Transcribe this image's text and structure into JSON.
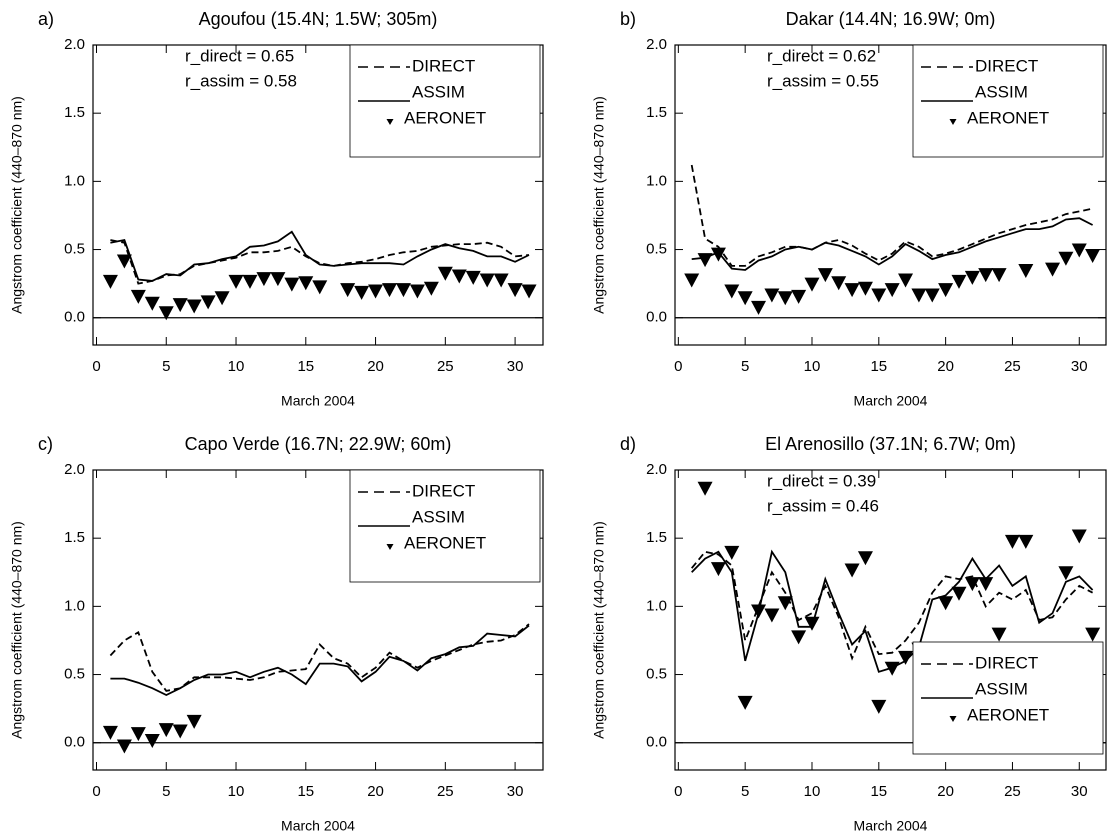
{
  "chart_data": [
    {
      "type": "line",
      "panel": "a)",
      "title": "Agoufou (15.4N; 1.5W; 305m)",
      "x_label": "March 2004",
      "y_label": "Angstrom coefficient (440–870 nm)",
      "annotations": [
        "r_direct  = 0.65",
        "r_assim = 0.58"
      ],
      "legend": "upper right",
      "xlim": [
        -0.25,
        32
      ],
      "xticks": [
        0,
        5,
        10,
        15,
        20,
        25,
        30
      ],
      "ylim": [
        -0.2,
        2.0
      ],
      "yticks": [
        {
          "value": 0,
          "label": "0.0"
        },
        {
          "value": 0.5,
          "label": "0.5"
        },
        {
          "value": 1,
          "label": "1.0"
        },
        {
          "value": 1.5,
          "label": "1.5"
        },
        {
          "value": 2,
          "label": "2.0"
        }
      ],
      "x": [
        1,
        2,
        3,
        4,
        5,
        6,
        7,
        8,
        9,
        10,
        11,
        12,
        13,
        14,
        15,
        16,
        17,
        18,
        19,
        20,
        21,
        22,
        23,
        24,
        25,
        26,
        27,
        28,
        29,
        30,
        31
      ],
      "series": [
        {
          "name": "DIRECT",
          "color": "#000000",
          "style": "dashed",
          "values": [
            0.57,
            0.55,
            0.25,
            0.27,
            0.31,
            0.32,
            0.38,
            0.4,
            0.42,
            0.44,
            0.48,
            0.48,
            0.49,
            0.52,
            0.45,
            0.4,
            0.38,
            0.4,
            0.41,
            0.43,
            0.46,
            0.48,
            0.49,
            0.52,
            0.53,
            0.54,
            0.54,
            0.55,
            0.52,
            0.45,
            0.46
          ]
        },
        {
          "name": "ASSIM",
          "color": "#000000",
          "style": "solid",
          "values": [
            0.55,
            0.57,
            0.28,
            0.27,
            0.32,
            0.31,
            0.39,
            0.4,
            0.43,
            0.45,
            0.52,
            0.53,
            0.56,
            0.63,
            0.46,
            0.39,
            0.38,
            0.39,
            0.4,
            0.4,
            0.4,
            0.39,
            0.45,
            0.5,
            0.54,
            0.51,
            0.49,
            0.45,
            0.45,
            0.41,
            0.46
          ]
        },
        {
          "name": "AERONET",
          "color": "#000000",
          "style": "markers",
          "values": [
            0.27,
            0.42,
            0.16,
            0.11,
            0.04,
            0.1,
            0.09,
            0.12,
            0.15,
            0.27,
            0.27,
            0.29,
            0.29,
            0.25,
            0.26,
            0.23,
            null,
            0.21,
            0.19,
            0.2,
            0.21,
            0.21,
            0.2,
            0.22,
            0.33,
            0.31,
            0.3,
            0.28,
            0.28,
            0.21,
            0.2
          ]
        }
      ]
    },
    {
      "type": "line",
      "panel": "b)",
      "title": "Dakar (14.4N; 16.9W; 0m)",
      "x_label": "March 2004",
      "y_label": "Angstrom coefficient (440–870 nm)",
      "annotations": [
        "r_direct  = 0.62",
        "r_assim = 0.55"
      ],
      "legend": "upper right",
      "xlim": [
        -0.25,
        32
      ],
      "xticks": [
        0,
        5,
        10,
        15,
        20,
        25,
        30
      ],
      "ylim": [
        -0.2,
        2.0
      ],
      "yticks": [
        {
          "value": 0,
          "label": "0.0"
        },
        {
          "value": 0.5,
          "label": "0.5"
        },
        {
          "value": 1,
          "label": "1.0"
        },
        {
          "value": 1.5,
          "label": "1.5"
        },
        {
          "value": 2,
          "label": "2.0"
        }
      ],
      "x": [
        1,
        2,
        3,
        4,
        5,
        6,
        7,
        8,
        9,
        10,
        11,
        12,
        13,
        14,
        15,
        16,
        17,
        18,
        19,
        20,
        21,
        22,
        23,
        24,
        25,
        26,
        27,
        28,
        29,
        30,
        31
      ],
      "series": [
        {
          "name": "DIRECT",
          "color": "#000000",
          "style": "dashed",
          "values": [
            1.12,
            0.58,
            0.52,
            0.38,
            0.38,
            0.45,
            0.48,
            0.52,
            0.52,
            0.5,
            0.55,
            0.57,
            0.53,
            0.47,
            0.42,
            0.47,
            0.56,
            0.52,
            0.45,
            0.47,
            0.5,
            0.54,
            0.58,
            0.62,
            0.65,
            0.68,
            0.7,
            0.72,
            0.76,
            0.78,
            0.8
          ]
        },
        {
          "name": "ASSIM",
          "color": "#000000",
          "style": "solid",
          "values": [
            0.43,
            0.44,
            0.48,
            0.36,
            0.35,
            0.42,
            0.45,
            0.5,
            0.52,
            0.5,
            0.55,
            0.53,
            0.49,
            0.45,
            0.39,
            0.45,
            0.54,
            0.49,
            0.43,
            0.46,
            0.48,
            0.52,
            0.56,
            0.59,
            0.62,
            0.65,
            0.65,
            0.67,
            0.72,
            0.73,
            0.68
          ]
        },
        {
          "name": "AERONET",
          "color": "#000000",
          "style": "markers",
          "values": [
            0.28,
            0.43,
            0.47,
            0.2,
            0.15,
            0.08,
            0.17,
            0.15,
            0.16,
            0.25,
            0.32,
            0.26,
            0.21,
            0.22,
            0.17,
            0.21,
            0.28,
            0.17,
            0.17,
            0.21,
            0.27,
            0.3,
            0.32,
            0.32,
            null,
            0.35,
            null,
            0.36,
            0.44,
            0.5,
            0.46
          ]
        }
      ]
    },
    {
      "type": "line",
      "panel": "c)",
      "title": "Capo Verde (16.7N; 22.9W; 60m)",
      "x_label": "March 2004",
      "y_label": "Angstrom coefficient (440–870 nm)",
      "annotations": [],
      "legend": "upper right",
      "xlim": [
        -0.25,
        32
      ],
      "xticks": [
        0,
        5,
        10,
        15,
        20,
        25,
        30
      ],
      "ylim": [
        -0.2,
        2.0
      ],
      "yticks": [
        {
          "value": 0,
          "label": "0.0"
        },
        {
          "value": 0.5,
          "label": "0.5"
        },
        {
          "value": 1,
          "label": "1.0"
        },
        {
          "value": 1.5,
          "label": "1.5"
        },
        {
          "value": 2,
          "label": "2.0"
        }
      ],
      "x": [
        1,
        2,
        3,
        4,
        5,
        6,
        7,
        8,
        9,
        10,
        11,
        12,
        13,
        14,
        15,
        16,
        17,
        18,
        19,
        20,
        21,
        22,
        23,
        24,
        25,
        26,
        27,
        28,
        29,
        30,
        31
      ],
      "series": [
        {
          "name": "DIRECT",
          "color": "#000000",
          "style": "dashed",
          "values": [
            0.64,
            0.75,
            0.81,
            0.52,
            0.38,
            0.4,
            0.48,
            0.48,
            0.48,
            0.47,
            0.46,
            0.48,
            0.52,
            0.53,
            0.54,
            0.72,
            0.62,
            0.58,
            0.48,
            0.55,
            0.66,
            0.6,
            0.55,
            0.6,
            0.64,
            0.68,
            0.72,
            0.74,
            0.75,
            0.79,
            0.87
          ]
        },
        {
          "name": "ASSIM",
          "color": "#000000",
          "style": "solid",
          "values": [
            0.47,
            0.47,
            0.44,
            0.4,
            0.35,
            0.4,
            0.46,
            0.5,
            0.5,
            0.52,
            0.48,
            0.52,
            0.55,
            0.5,
            0.43,
            0.58,
            0.58,
            0.56,
            0.45,
            0.52,
            0.63,
            0.6,
            0.53,
            0.62,
            0.65,
            0.7,
            0.71,
            0.8,
            0.79,
            0.78,
            0.86
          ]
        },
        {
          "name": "AERONET",
          "color": "#000000",
          "style": "markers",
          "values": [
            0.08,
            -0.02,
            0.07,
            0.02,
            0.1,
            0.09,
            0.16,
            null,
            null,
            null,
            null,
            null,
            null,
            null,
            null,
            null,
            null,
            null,
            null,
            null,
            null,
            null,
            null,
            null,
            null,
            null,
            null,
            null,
            null,
            null,
            null
          ]
        }
      ]
    },
    {
      "type": "line",
      "panel": "d)",
      "title": "El Arenosillo (37.1N; 6.7W; 0m)",
      "x_label": "March 2004",
      "y_label": "Angstrom coefficient (440–870 nm)",
      "annotations": [
        "r_direct  = 0.39",
        "r_assim = 0.46"
      ],
      "legend": "lower right",
      "xlim": [
        -0.25,
        32
      ],
      "xticks": [
        0,
        5,
        10,
        15,
        20,
        25,
        30
      ],
      "ylim": [
        -0.2,
        2.0
      ],
      "yticks": [
        {
          "value": 0,
          "label": "0.0"
        },
        {
          "value": 0.5,
          "label": "0.5"
        },
        {
          "value": 1,
          "label": "1.0"
        },
        {
          "value": 1.5,
          "label": "1.5"
        },
        {
          "value": 2,
          "label": "2.0"
        }
      ],
      "x": [
        1,
        2,
        3,
        4,
        5,
        6,
        7,
        8,
        9,
        10,
        11,
        12,
        13,
        14,
        15,
        16,
        17,
        18,
        19,
        20,
        21,
        22,
        23,
        24,
        25,
        26,
        27,
        28,
        29,
        30,
        31
      ],
      "series": [
        {
          "name": "DIRECT",
          "color": "#000000",
          "style": "dashed",
          "values": [
            1.28,
            1.4,
            1.38,
            1.3,
            0.75,
            1.0,
            1.25,
            1.1,
            0.9,
            0.95,
            1.15,
            0.92,
            0.62,
            0.85,
            0.65,
            0.66,
            0.75,
            0.88,
            1.1,
            1.22,
            1.2,
            1.22,
            1.0,
            1.1,
            1.05,
            1.12,
            0.9,
            0.92,
            1.05,
            1.15,
            1.1
          ]
        },
        {
          "name": "ASSIM",
          "color": "#000000",
          "style": "solid",
          "values": [
            1.25,
            1.35,
            1.4,
            1.25,
            0.6,
            0.95,
            1.4,
            1.25,
            0.85,
            0.85,
            1.2,
            0.95,
            0.72,
            0.82,
            0.52,
            0.55,
            0.6,
            0.7,
            1.05,
            1.08,
            1.18,
            1.35,
            1.2,
            1.3,
            1.15,
            1.22,
            0.88,
            0.95,
            1.18,
            1.22,
            1.12
          ]
        },
        {
          "name": "AERONET",
          "color": "#000000",
          "style": "markers",
          "values": [
            null,
            1.87,
            1.28,
            1.4,
            0.3,
            0.97,
            0.94,
            1.03,
            0.78,
            0.88,
            null,
            null,
            1.27,
            1.36,
            0.27,
            0.55,
            0.63,
            0.69,
            0.63,
            1.03,
            1.1,
            1.17,
            1.17,
            0.8,
            1.48,
            1.48,
            null,
            null,
            1.25,
            1.52,
            0.8
          ]
        }
      ]
    }
  ]
}
